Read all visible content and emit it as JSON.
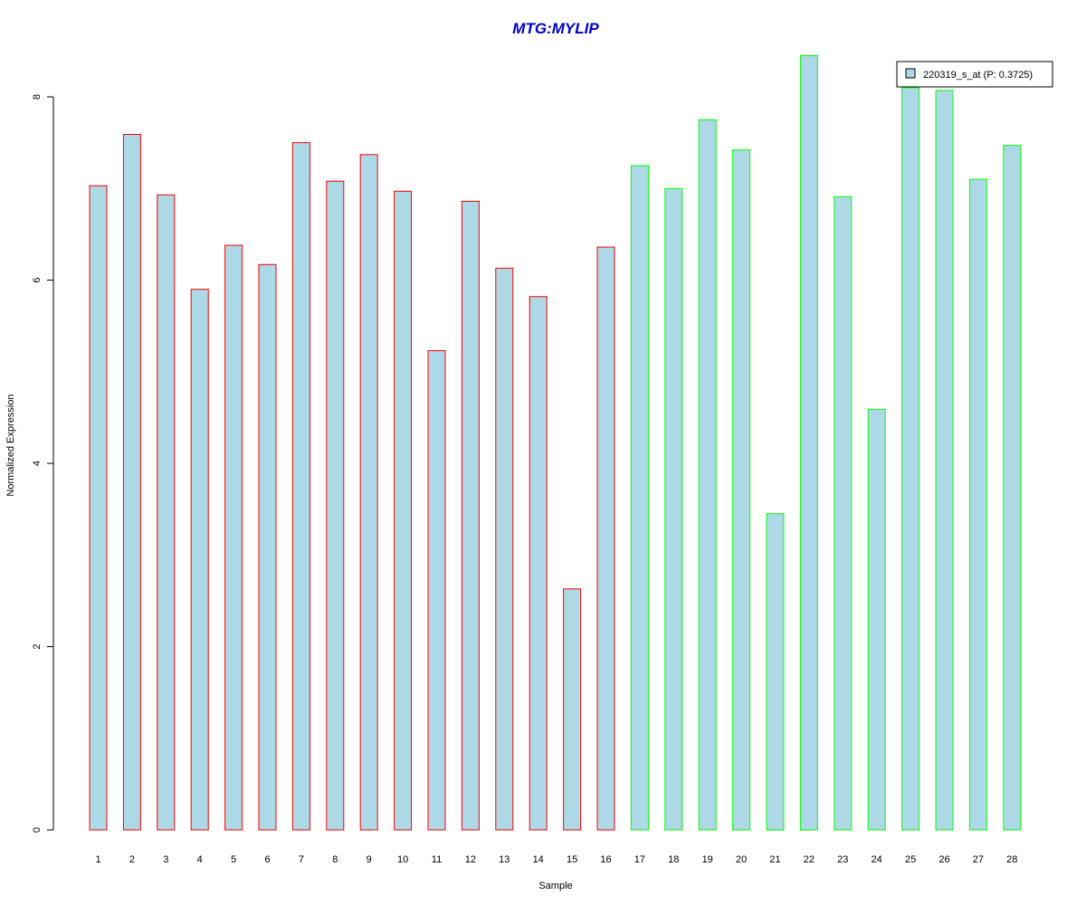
{
  "chart_data": {
    "type": "bar",
    "title": "MTG:MYLIP",
    "xlabel": "Sample",
    "ylabel": "Normalized Expression",
    "categories": [
      "1",
      "2",
      "3",
      "4",
      "5",
      "6",
      "7",
      "8",
      "9",
      "10",
      "11",
      "12",
      "13",
      "14",
      "15",
      "16",
      "17",
      "18",
      "19",
      "20",
      "21",
      "22",
      "23",
      "24",
      "25",
      "26",
      "27",
      "28"
    ],
    "values": [
      7.03,
      7.59,
      6.93,
      5.9,
      6.38,
      6.17,
      7.5,
      7.08,
      7.37,
      6.97,
      5.23,
      6.86,
      6.13,
      5.82,
      2.63,
      6.36,
      7.25,
      7.0,
      7.75,
      7.42,
      3.45,
      8.45,
      6.91,
      4.59,
      8.1,
      8.07,
      7.1,
      7.47
    ],
    "group": [
      "red",
      "red",
      "red",
      "red",
      "red",
      "red",
      "red",
      "red",
      "red",
      "red",
      "red",
      "red",
      "red",
      "red",
      "red",
      "red",
      "green",
      "green",
      "green",
      "green",
      "green",
      "green",
      "green",
      "green",
      "green",
      "green",
      "green",
      "green"
    ],
    "ylim": [
      0,
      8.45
    ],
    "yticks": [
      0,
      2,
      4,
      6,
      8
    ],
    "grid": false,
    "legend": {
      "placement": "top-right",
      "entries": [
        {
          "name": "220319_s_at (P: 0.3725)"
        }
      ]
    },
    "colors": {
      "fill": "#add8e6",
      "red": "#ff0000",
      "green": "#00ff00",
      "title": "#0000cc",
      "axis": "#000000"
    }
  }
}
